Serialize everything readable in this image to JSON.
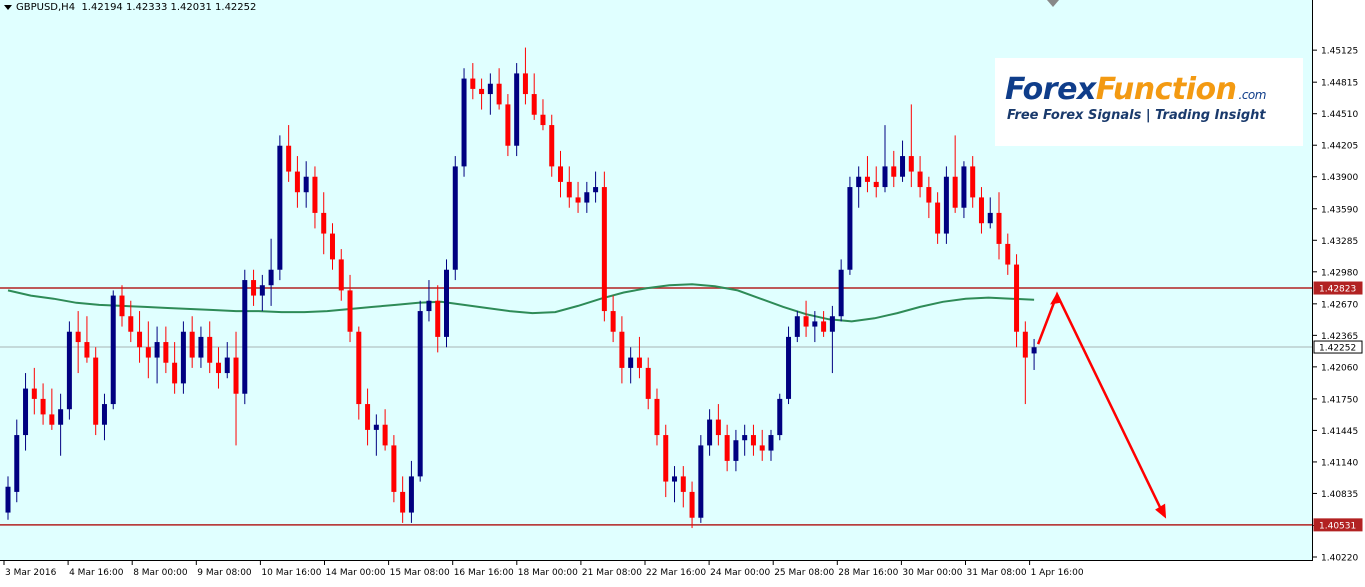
{
  "header": {
    "symbol_tf": "GBPUSD,H4",
    "ohlc": "1.42194 1.42333 1.42031 1.42252"
  },
  "logo": {
    "part1": "Forex",
    "part2": "Function",
    "suffix": ".com",
    "tagline": "Free Forex Signals | Trading Insight"
  },
  "colors": {
    "background": "#e0ffff",
    "bull_candle": "#000080",
    "bear_candle": "#ff0000",
    "moving_average": "#2e8b57",
    "level_line": "#b22222",
    "arrow": "#ff0000"
  },
  "price_axis": {
    "min": 1.4022,
    "max": 1.4532,
    "ticks": [
      "1.45125",
      "1.44815",
      "1.44510",
      "1.44205",
      "1.43900",
      "1.43590",
      "1.43285",
      "1.42980",
      "1.42670",
      "1.42365",
      "1.42060",
      "1.41750",
      "1.41445",
      "1.41140",
      "1.40835",
      "1.40525",
      "1.40220"
    ]
  },
  "levels": [
    {
      "price": 1.42823,
      "label": "1.42823",
      "kind": "resistance"
    },
    {
      "price": 1.40531,
      "label": "1.40531",
      "kind": "support"
    },
    {
      "price": 1.42252,
      "label": "1.42252",
      "kind": "current"
    }
  ],
  "time_axis": {
    "labels": [
      "3 Mar 2016",
      "4 Mar 16:00",
      "8 Mar 00:00",
      "9 Mar 08:00",
      "10 Mar 16:00",
      "14 Mar 00:00",
      "15 Mar 08:00",
      "16 Mar 16:00",
      "18 Mar 00:00",
      "21 Mar 08:00",
      "22 Mar 16:00",
      "24 Mar 00:00",
      "25 Mar 08:00",
      "28 Mar 16:00",
      "30 Mar 00:00",
      "31 Mar 08:00",
      "1 Apr 16:00"
    ]
  },
  "chart_data": {
    "type": "candlestick",
    "symbol": "GBPUSD",
    "timeframe": "H4",
    "ylim": [
      1.4022,
      1.4532
    ],
    "candles": [
      [
        1.4065,
        1.41,
        1.4058,
        1.409
      ],
      [
        1.4085,
        1.4155,
        1.4075,
        1.414
      ],
      [
        1.414,
        1.42,
        1.4125,
        1.4185
      ],
      [
        1.4185,
        1.4205,
        1.416,
        1.4175
      ],
      [
        1.4175,
        1.419,
        1.415,
        1.416
      ],
      [
        1.416,
        1.4185,
        1.4145,
        1.415
      ],
      [
        1.415,
        1.418,
        1.412,
        1.4165
      ],
      [
        1.4165,
        1.425,
        1.4155,
        1.424
      ],
      [
        1.424,
        1.426,
        1.42,
        1.423
      ],
      [
        1.423,
        1.4255,
        1.421,
        1.4215
      ],
      [
        1.4215,
        1.4225,
        1.414,
        1.415
      ],
      [
        1.415,
        1.418,
        1.4135,
        1.417
      ],
      [
        1.417,
        1.428,
        1.4165,
        1.4275
      ],
      [
        1.4275,
        1.4285,
        1.4245,
        1.4255
      ],
      [
        1.4255,
        1.427,
        1.423,
        1.424
      ],
      [
        1.424,
        1.426,
        1.421,
        1.4225
      ],
      [
        1.4225,
        1.425,
        1.4195,
        1.4215
      ],
      [
        1.4215,
        1.4245,
        1.419,
        1.423
      ],
      [
        1.423,
        1.4245,
        1.42,
        1.421
      ],
      [
        1.421,
        1.423,
        1.418,
        1.419
      ],
      [
        1.419,
        1.425,
        1.418,
        1.424
      ],
      [
        1.424,
        1.4255,
        1.4205,
        1.4215
      ],
      [
        1.4215,
        1.4245,
        1.4205,
        1.4235
      ],
      [
        1.4235,
        1.425,
        1.42,
        1.421
      ],
      [
        1.421,
        1.4225,
        1.4185,
        1.42
      ],
      [
        1.42,
        1.423,
        1.4195,
        1.4215
      ],
      [
        1.4215,
        1.424,
        1.413,
        1.418
      ],
      [
        1.418,
        1.43,
        1.417,
        1.429
      ],
      [
        1.429,
        1.43,
        1.4265,
        1.4275
      ],
      [
        1.4275,
        1.4295,
        1.426,
        1.4285
      ],
      [
        1.4285,
        1.433,
        1.4265,
        1.43
      ],
      [
        1.43,
        1.443,
        1.429,
        1.442
      ],
      [
        1.442,
        1.444,
        1.4385,
        1.4395
      ],
      [
        1.4395,
        1.441,
        1.436,
        1.4375
      ],
      [
        1.4375,
        1.4405,
        1.436,
        1.439
      ],
      [
        1.439,
        1.44,
        1.434,
        1.4355
      ],
      [
        1.4355,
        1.4375,
        1.4315,
        1.4335
      ],
      [
        1.4335,
        1.4345,
        1.43,
        1.431
      ],
      [
        1.431,
        1.432,
        1.427,
        1.428
      ],
      [
        1.428,
        1.4295,
        1.423,
        1.424
      ],
      [
        1.424,
        1.4245,
        1.4155,
        1.417
      ],
      [
        1.417,
        1.4185,
        1.413,
        1.4145
      ],
      [
        1.4145,
        1.416,
        1.412,
        1.415
      ],
      [
        1.415,
        1.4165,
        1.4125,
        1.413
      ],
      [
        1.413,
        1.414,
        1.4075,
        1.4085
      ],
      [
        1.4085,
        1.41,
        1.4055,
        1.4065
      ],
      [
        1.4065,
        1.4115,
        1.4055,
        1.41
      ],
      [
        1.41,
        1.427,
        1.4095,
        1.426
      ],
      [
        1.426,
        1.429,
        1.425,
        1.427
      ],
      [
        1.427,
        1.4285,
        1.422,
        1.4235
      ],
      [
        1.4235,
        1.431,
        1.4225,
        1.43
      ],
      [
        1.43,
        1.441,
        1.429,
        1.44
      ],
      [
        1.44,
        1.4495,
        1.439,
        1.4485
      ],
      [
        1.4485,
        1.45,
        1.4465,
        1.4475
      ],
      [
        1.4475,
        1.4485,
        1.4455,
        1.447
      ],
      [
        1.447,
        1.449,
        1.445,
        1.448
      ],
      [
        1.448,
        1.4495,
        1.4455,
        1.446
      ],
      [
        1.446,
        1.447,
        1.441,
        1.442
      ],
      [
        1.442,
        1.45,
        1.441,
        1.449
      ],
      [
        1.449,
        1.4515,
        1.446,
        1.447
      ],
      [
        1.447,
        1.449,
        1.4445,
        1.445
      ],
      [
        1.445,
        1.4465,
        1.4435,
        1.444
      ],
      [
        1.444,
        1.445,
        1.439,
        1.44
      ],
      [
        1.44,
        1.4415,
        1.437,
        1.4385
      ],
      [
        1.4385,
        1.44,
        1.436,
        1.437
      ],
      [
        1.437,
        1.4385,
        1.4355,
        1.4365
      ],
      [
        1.4365,
        1.4385,
        1.4355,
        1.4375
      ],
      [
        1.4375,
        1.4395,
        1.4365,
        1.438
      ],
      [
        1.438,
        1.4395,
        1.425,
        1.426
      ],
      [
        1.426,
        1.4275,
        1.423,
        1.424
      ],
      [
        1.424,
        1.4255,
        1.419,
        1.4205
      ],
      [
        1.4205,
        1.4225,
        1.419,
        1.4215
      ],
      [
        1.4215,
        1.4235,
        1.4195,
        1.4205
      ],
      [
        1.4205,
        1.4215,
        1.4165,
        1.4175
      ],
      [
        1.4175,
        1.4185,
        1.413,
        1.414
      ],
      [
        1.414,
        1.415,
        1.408,
        1.4095
      ],
      [
        1.4095,
        1.411,
        1.4075,
        1.41
      ],
      [
        1.41,
        1.411,
        1.407,
        1.4085
      ],
      [
        1.4085,
        1.4095,
        1.405,
        1.406
      ],
      [
        1.406,
        1.414,
        1.4055,
        1.413
      ],
      [
        1.413,
        1.4165,
        1.412,
        1.4155
      ],
      [
        1.4155,
        1.417,
        1.413,
        1.414
      ],
      [
        1.414,
        1.415,
        1.4105,
        1.4115
      ],
      [
        1.4115,
        1.4145,
        1.4105,
        1.4135
      ],
      [
        1.4135,
        1.415,
        1.412,
        1.414
      ],
      [
        1.414,
        1.415,
        1.412,
        1.413
      ],
      [
        1.413,
        1.4145,
        1.4115,
        1.4125
      ],
      [
        1.4125,
        1.4145,
        1.4115,
        1.414
      ],
      [
        1.414,
        1.418,
        1.4135,
        1.4175
      ],
      [
        1.4175,
        1.4245,
        1.417,
        1.4235
      ],
      [
        1.4235,
        1.426,
        1.423,
        1.4255
      ],
      [
        1.4255,
        1.427,
        1.4235,
        1.4245
      ],
      [
        1.4245,
        1.426,
        1.423,
        1.425
      ],
      [
        1.425,
        1.426,
        1.4235,
        1.424
      ],
      [
        1.424,
        1.4265,
        1.42,
        1.4255
      ],
      [
        1.4255,
        1.431,
        1.425,
        1.43
      ],
      [
        1.43,
        1.439,
        1.4295,
        1.438
      ],
      [
        1.438,
        1.44,
        1.436,
        1.439
      ],
      [
        1.439,
        1.441,
        1.4375,
        1.4385
      ],
      [
        1.4385,
        1.44,
        1.437,
        1.438
      ],
      [
        1.438,
        1.444,
        1.4375,
        1.44
      ],
      [
        1.44,
        1.4415,
        1.438,
        1.439
      ],
      [
        1.439,
        1.4425,
        1.4385,
        1.441
      ],
      [
        1.441,
        1.446,
        1.438,
        1.4395
      ],
      [
        1.4395,
        1.441,
        1.437,
        1.438
      ],
      [
        1.438,
        1.439,
        1.435,
        1.4365
      ],
      [
        1.4365,
        1.4375,
        1.4325,
        1.4335
      ],
      [
        1.4335,
        1.44,
        1.4325,
        1.439
      ],
      [
        1.439,
        1.443,
        1.4355,
        1.436
      ],
      [
        1.436,
        1.4405,
        1.435,
        1.44
      ],
      [
        1.44,
        1.441,
        1.436,
        1.437
      ],
      [
        1.437,
        1.438,
        1.4335,
        1.4345
      ],
      [
        1.4345,
        1.437,
        1.434,
        1.4355
      ],
      [
        1.4355,
        1.4375,
        1.431,
        1.4325
      ],
      [
        1.4325,
        1.4335,
        1.4295,
        1.4305
      ],
      [
        1.4305,
        1.4315,
        1.4225,
        1.424
      ],
      [
        1.424,
        1.425,
        1.417,
        1.4215
      ],
      [
        1.4219,
        1.4233,
        1.4203,
        1.4225
      ]
    ],
    "moving_average": [
      1.428,
      1.4275,
      1.4272,
      1.4268,
      1.4266,
      1.4265,
      1.4264,
      1.4263,
      1.4262,
      1.4261,
      1.426,
      1.426,
      1.4259,
      1.4259,
      1.426,
      1.4262,
      1.4264,
      1.4266,
      1.4268,
      1.4269,
      1.4266,
      1.4263,
      1.426,
      1.4258,
      1.4259,
      1.4265,
      1.4272,
      1.4278,
      1.4282,
      1.4285,
      1.4286,
      1.4284,
      1.428,
      1.4272,
      1.4264,
      1.4257,
      1.4252,
      1.425,
      1.4253,
      1.4258,
      1.4264,
      1.4269,
      1.4272,
      1.4273,
      1.4272,
      1.4271
    ]
  }
}
